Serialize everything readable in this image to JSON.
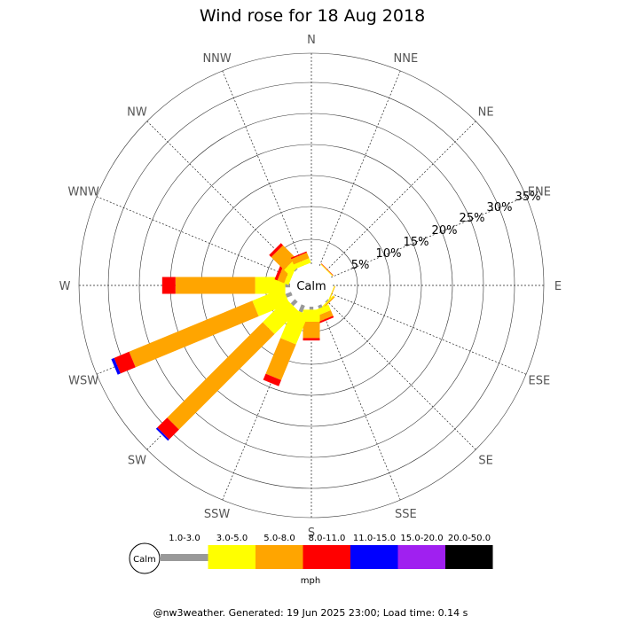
{
  "chart_data": {
    "type": "wind-rose",
    "title": "Wind rose for 18 Aug 2018",
    "center_label": "Calm",
    "directions": [
      "N",
      "NNE",
      "NE",
      "ENE",
      "E",
      "ESE",
      "SE",
      "SSE",
      "S",
      "SSW",
      "SW",
      "WSW",
      "W",
      "WNW",
      "NW",
      "NNW"
    ],
    "rings": [
      "5%",
      "10%",
      "15%",
      "20%",
      "25%",
      "30%",
      "35%"
    ],
    "ring_values": [
      5,
      10,
      15,
      20,
      25,
      30,
      35
    ],
    "unit": "mph",
    "speed_bins": [
      {
        "label": "1.0-3.0",
        "color": "#999999"
      },
      {
        "label": "3.0-5.0",
        "color": "#ffff00"
      },
      {
        "label": "5.0-8.0",
        "color": "#ffa500"
      },
      {
        "label": "8.0-11.0",
        "color": "#ff0000"
      },
      {
        "label": "11.0-15.0",
        "color": "#0000ff"
      },
      {
        "label": "15.0-20.0",
        "color": "#a020f0"
      },
      {
        "label": "20.0-50.0",
        "color": "#000000"
      }
    ],
    "series": [
      {
        "direction": "NE",
        "cumulative": [
          0,
          0.1,
          0.2,
          0.25,
          0.25,
          0.25,
          0.25
        ]
      },
      {
        "direction": "ESE",
        "cumulative": [
          0,
          0.1,
          0.2,
          0.2,
          0.2,
          0.2,
          0.2
        ]
      },
      {
        "direction": "SE",
        "cumulative": [
          0.2,
          0.4,
          0.6,
          0.6,
          0.6,
          0.6,
          0.6
        ]
      },
      {
        "direction": "SSE",
        "cumulative": [
          0.5,
          1.5,
          2.5,
          2.8,
          2.8,
          2.8,
          2.8
        ]
      },
      {
        "direction": "S",
        "cumulative": [
          0.5,
          2.5,
          5.2,
          5.6,
          5.6,
          5.6,
          5.6
        ]
      },
      {
        "direction": "SSW",
        "cumulative": [
          1.2,
          6.5,
          12.9,
          14.0,
          14.0,
          14.0,
          14.0
        ]
      },
      {
        "direction": "SW",
        "cumulative": [
          1.0,
          6.5,
          28.9,
          31.2,
          31.5,
          31.5,
          31.5
        ]
      },
      {
        "direction": "WSW",
        "cumulative": [
          1.0,
          6.5,
          28.6,
          31.3,
          31.8,
          31.8,
          31.8
        ]
      },
      {
        "direction": "W",
        "cumulative": [
          0.8,
          5.8,
          19.0,
          21.2,
          21.2,
          21.2,
          21.2
        ]
      },
      {
        "direction": "WNW",
        "cumulative": [
          0,
          0.8,
          2.0,
          2.5,
          2.5,
          2.5,
          2.5
        ]
      },
      {
        "direction": "NW",
        "cumulative": [
          0.2,
          1.5,
          4.5,
          5.0,
          5.0,
          5.0,
          5.0
        ]
      },
      {
        "direction": "NNW",
        "cumulative": [
          0,
          0.8,
          1.8,
          2.0,
          2.0,
          2.0,
          2.0
        ]
      }
    ]
  },
  "footer": "@nw3weather. Generated: 19 Jun 2025 23:00; Load time: 0.14 s"
}
